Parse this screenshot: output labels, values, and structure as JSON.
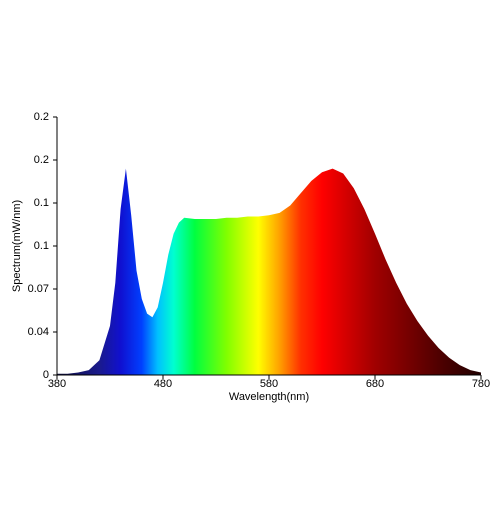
{
  "chart_data": {
    "type": "area",
    "xlabel": "Wavelength(nm)",
    "ylabel": "Spectrum(mW/nm)",
    "x": [
      380,
      390,
      400,
      410,
      420,
      430,
      435,
      440,
      445,
      450,
      455,
      460,
      465,
      470,
      475,
      480,
      485,
      490,
      495,
      500,
      510,
      520,
      530,
      540,
      550,
      560,
      570,
      580,
      590,
      600,
      610,
      620,
      630,
      640,
      650,
      660,
      670,
      680,
      690,
      700,
      710,
      720,
      730,
      740,
      750,
      760,
      770,
      780
    ],
    "values": [
      0.001,
      0.001,
      0.002,
      0.004,
      0.012,
      0.04,
      0.075,
      0.135,
      0.168,
      0.13,
      0.085,
      0.062,
      0.05,
      0.047,
      0.055,
      0.075,
      0.098,
      0.115,
      0.124,
      0.128,
      0.127,
      0.127,
      0.127,
      0.128,
      0.128,
      0.129,
      0.129,
      0.13,
      0.132,
      0.138,
      0.148,
      0.158,
      0.165,
      0.168,
      0.164,
      0.152,
      0.135,
      0.115,
      0.094,
      0.075,
      0.058,
      0.044,
      0.032,
      0.022,
      0.014,
      0.008,
      0.004,
      0.002
    ],
    "xlim": [
      380,
      780
    ],
    "xticks": [
      380,
      480,
      580,
      680,
      780
    ],
    "ylim": [
      0,
      0.21
    ],
    "yticks": [
      0,
      {
        "value": 0.035,
        "label": "0.04"
      },
      0.07,
      {
        "value": 0.105,
        "label": "0.1"
      },
      {
        "value": 0.14,
        "label": "0.1"
      },
      {
        "value": 0.175,
        "label": "0.2"
      },
      {
        "value": 0.21,
        "label": "0.2"
      }
    ],
    "grid": false,
    "gradient": [
      [
        380,
        "#101040"
      ],
      [
        420,
        "#1a1a8c"
      ],
      [
        440,
        "#1010d0"
      ],
      [
        460,
        "#0040ff"
      ],
      [
        475,
        "#00c0ff"
      ],
      [
        490,
        "#00ffd0"
      ],
      [
        510,
        "#00ff40"
      ],
      [
        540,
        "#80ff00"
      ],
      [
        570,
        "#ffff00"
      ],
      [
        590,
        "#ffa000"
      ],
      [
        610,
        "#ff3000"
      ],
      [
        630,
        "#ff0000"
      ],
      [
        680,
        "#a00000"
      ],
      [
        740,
        "#500000"
      ],
      [
        780,
        "#200000"
      ]
    ]
  }
}
